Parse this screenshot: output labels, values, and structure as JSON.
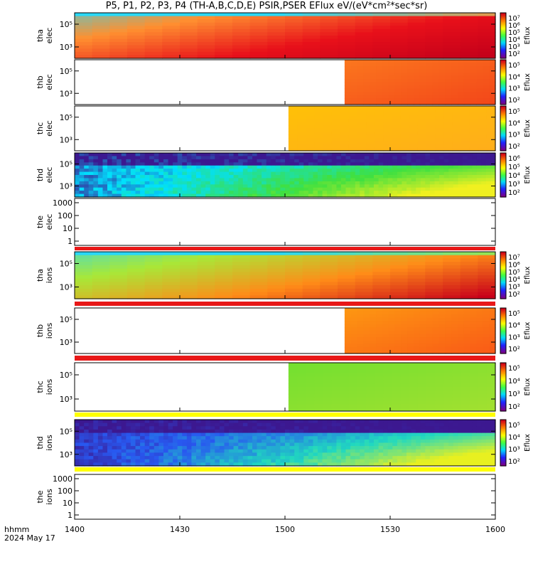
{
  "title": "P5, P1, P2, P3, P4 (TH-A,B,C,D,E) PSIR,PSER EFlux eV/(eV*cm²*sec*sr)",
  "footer": {
    "label1": "hhmm",
    "label2": "2024 May 17"
  },
  "colorbar_label": "Eflux",
  "x_ticks": [
    "1400",
    "1430",
    "1500",
    "1530",
    "1600"
  ],
  "chart_data": {
    "type": "heatmap",
    "x_range_hhmm": [
      "1400",
      "1600"
    ],
    "x_ticks": [
      "1400",
      "1430",
      "1500",
      "1530",
      "1600"
    ],
    "panels": [
      {
        "name": "tha elec",
        "ylabel": [
          "tha",
          "elec"
        ],
        "yticks": [
          "10⁵",
          "10³"
        ],
        "log": true,
        "data_start": "1400",
        "pattern": "gradient",
        "colors": [
          "#28d8f8",
          "#ff9030",
          "#e8101a",
          "#c4001a"
        ],
        "colorbar": [
          "10⁷",
          "10⁶",
          "10⁵",
          "10⁴",
          "10³",
          "10²"
        ]
      },
      {
        "name": "thb elec",
        "ylabel": [
          "thb",
          "elec"
        ],
        "yticks": [
          "10⁵",
          "10³"
        ],
        "log": true,
        "data_start": "1517",
        "pattern": "uniform",
        "colors": [
          "#ff8a20",
          "#f03818"
        ],
        "colorbar": [
          "10⁵",
          "10⁴",
          "10³",
          "10²"
        ]
      },
      {
        "name": "thc elec",
        "ylabel": [
          "thc",
          "elec"
        ],
        "yticks": [
          "10⁵",
          "10³"
        ],
        "log": true,
        "data_start": "1501",
        "pattern": "uniform",
        "colors": [
          "#ffc800",
          "#ffa820"
        ],
        "colorbar": [
          "10⁵",
          "10⁴",
          "10³",
          "10²"
        ]
      },
      {
        "name": "thd elec",
        "ylabel": [
          "thd",
          "elec"
        ],
        "yticks": [
          "10⁵",
          "10³"
        ],
        "log": true,
        "data_start": "1400",
        "pattern": "mixed",
        "colors": [
          "#3c1890",
          "#00e0ff",
          "#40e040",
          "#f0f020"
        ],
        "colorbar": [
          "10⁶",
          "10⁵",
          "10⁴",
          "10³",
          "10²"
        ]
      },
      {
        "name": "the elec",
        "ylabel": [
          "the",
          "elec"
        ],
        "yticks": [
          "1000",
          "100",
          "10",
          "1"
        ],
        "log": true,
        "data_start": null,
        "pattern": "empty",
        "colors": [],
        "colorbar": []
      },
      {
        "name": "tha ions",
        "ylabel": [
          "tha",
          "ions"
        ],
        "yticks": [
          "10⁵",
          "10³"
        ],
        "log": true,
        "data_start": "1400",
        "pattern": "gradient",
        "colors": [
          "#28d8f8",
          "#a8e838",
          "#ff8c18",
          "#c8001a"
        ],
        "colorbar": [
          "10⁷",
          "10⁶",
          "10⁵",
          "10⁴",
          "10³",
          "10²"
        ]
      },
      {
        "name": "thb ions",
        "ylabel": [
          "thb",
          "ions"
        ],
        "yticks": [
          "10⁵",
          "10³"
        ],
        "log": true,
        "data_start": "1517",
        "pattern": "uniform",
        "colors": [
          "#ffb010",
          "#f84818"
        ],
        "colorbar": [
          "10⁵",
          "10⁴",
          "10³",
          "10²"
        ]
      },
      {
        "name": "thc ions",
        "ylabel": [
          "thc",
          "ions"
        ],
        "yticks": [
          "10⁵",
          "10³"
        ],
        "log": true,
        "data_start": "1501",
        "pattern": "uniform",
        "colors": [
          "#60e030",
          "#b0e030"
        ],
        "colorbar": [
          "10⁵",
          "10⁴",
          "10³",
          "10²"
        ]
      },
      {
        "name": "thd ions",
        "ylabel": [
          "thd",
          "ions"
        ],
        "yticks": [
          "10⁵",
          "10³"
        ],
        "log": true,
        "data_start": "1400",
        "pattern": "mixed",
        "colors": [
          "#3c1890",
          "#2858f0",
          "#20d8c0",
          "#e8f020"
        ],
        "colorbar": [
          "10⁵",
          "10⁴",
          "10³",
          "10²"
        ]
      },
      {
        "name": "the ions",
        "ylabel": [
          "the",
          "ions"
        ],
        "yticks": [
          "1000",
          "100",
          "10",
          "1"
        ],
        "log": true,
        "data_start": null,
        "pattern": "empty",
        "colors": [],
        "colorbar": []
      }
    ]
  }
}
